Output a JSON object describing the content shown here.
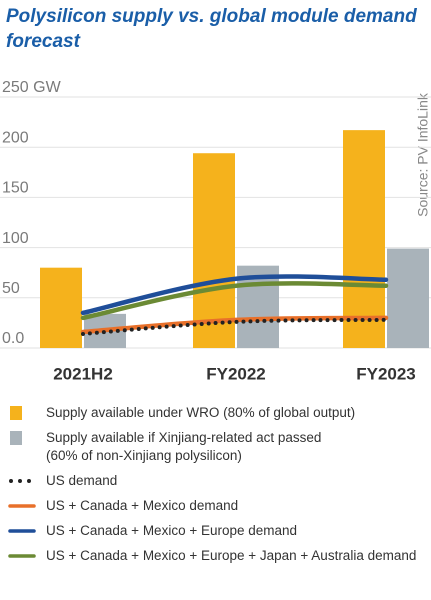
{
  "chart_data": {
    "type": "bar",
    "title": "Polysilicon supply vs. global module demand forecast",
    "source": "Source: PV InfoLink",
    "categories": [
      "2021H2",
      "FY2022",
      "FY2023"
    ],
    "ylim": [
      0,
      250
    ],
    "yticks": [
      {
        "value": 0,
        "label": "0.0"
      },
      50,
      100,
      150,
      {
        "value": 200,
        "label": "200"
      },
      {
        "value": 250,
        "label": "250 GW"
      }
    ],
    "grid": true,
    "series": [
      {
        "name": "Supply available under WRO (80% of global output)",
        "type": "bar",
        "color": "#f5b21c",
        "values": [
          80,
          194,
          217
        ]
      },
      {
        "name": "Supply available if Xinjiang-related act passed\n(60% of non-Xinjiang polysilicon)",
        "type": "bar",
        "color": "#a9b3ba",
        "values": [
          34,
          82,
          99
        ]
      },
      {
        "name": "US demand",
        "type": "line",
        "style": "dotted",
        "color": "#222222",
        "values": [
          14,
          26,
          28
        ]
      },
      {
        "name": "US + Canada + Mexico demand",
        "type": "line",
        "color": "#e8702a",
        "values": [
          16,
          28,
          30
        ]
      },
      {
        "name": "US + Canada + Mexico + Europe demand",
        "type": "line",
        "color": "#1f4e99",
        "values": [
          35,
          69,
          68
        ]
      },
      {
        "name": "US + Canada + Mexico + Europe + Japan + Australia demand",
        "type": "line",
        "color": "#6b8a34",
        "values": [
          30,
          62,
          62
        ]
      }
    ]
  }
}
